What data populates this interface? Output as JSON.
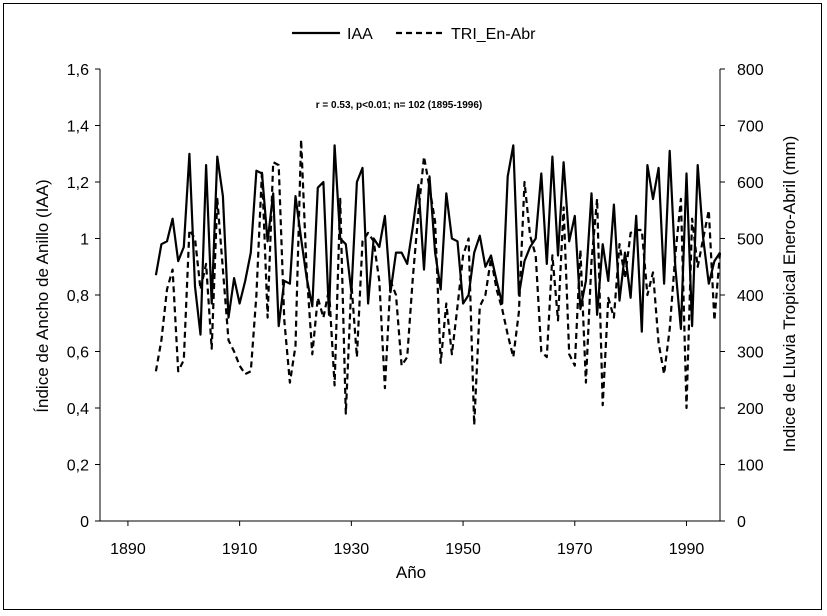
{
  "chart_data": {
    "type": "line",
    "annotation": "r = 0.53, p<0.01; n= 102 (1895-1996)",
    "xlabel": "Año",
    "ylabel_left": "Índice de Ancho de Anillo (IAA)",
    "ylabel_right": "Indice de Lluvia Tropical Enero-Abril (mm)",
    "xlim": [
      1885,
      1996
    ],
    "ylim_left": [
      0,
      1.6
    ],
    "ylim_right": [
      0,
      800
    ],
    "x_ticks": [
      "1890",
      "1910",
      "1930",
      "1950",
      "1970",
      "1990"
    ],
    "y_left_ticks": [
      "0",
      "0,2",
      "0,4",
      "0,6",
      "0,8",
      "1",
      "1,2",
      "1,4",
      "1,6"
    ],
    "y_right_ticks": [
      "0",
      "100",
      "200",
      "300",
      "400",
      "500",
      "600",
      "700",
      "800"
    ],
    "legend_position": "top",
    "grid": false,
    "x": [
      1895,
      1896,
      1897,
      1898,
      1899,
      1900,
      1901,
      1902,
      1903,
      1904,
      1905,
      1906,
      1907,
      1908,
      1909,
      1910,
      1911,
      1912,
      1913,
      1914,
      1915,
      1916,
      1917,
      1918,
      1919,
      1920,
      1921,
      1922,
      1923,
      1924,
      1925,
      1926,
      1927,
      1928,
      1929,
      1930,
      1931,
      1932,
      1933,
      1934,
      1935,
      1936,
      1937,
      1938,
      1939,
      1940,
      1941,
      1942,
      1943,
      1944,
      1945,
      1946,
      1947,
      1948,
      1949,
      1950,
      1951,
      1952,
      1953,
      1954,
      1955,
      1956,
      1957,
      1958,
      1959,
      1960,
      1961,
      1962,
      1963,
      1964,
      1965,
      1966,
      1967,
      1968,
      1969,
      1970,
      1971,
      1972,
      1973,
      1974,
      1975,
      1976,
      1977,
      1978,
      1979,
      1980,
      1981,
      1982,
      1983,
      1984,
      1985,
      1986,
      1987,
      1988,
      1989,
      1990,
      1991,
      1992,
      1993,
      1994,
      1995,
      1996
    ],
    "series": [
      {
        "name": "IAA",
        "axis": "left",
        "style": "solid",
        "color": "#000000",
        "values": [
          0.87,
          0.98,
          0.99,
          1.07,
          0.92,
          0.97,
          1.3,
          0.83,
          0.66,
          1.26,
          0.77,
          1.29,
          1.15,
          0.72,
          0.86,
          0.77,
          0.85,
          0.95,
          1.24,
          1.23,
          0.99,
          1.16,
          0.69,
          0.85,
          0.84,
          1.15,
          1.0,
          0.86,
          0.76,
          1.18,
          1.2,
          0.73,
          1.33,
          1.0,
          0.98,
          0.81,
          1.2,
          1.25,
          0.77,
          1.0,
          0.97,
          1.08,
          0.81,
          0.95,
          0.95,
          0.91,
          1.04,
          1.19,
          0.89,
          1.22,
          0.95,
          0.82,
          1.16,
          1.0,
          0.99,
          0.77,
          0.8,
          0.95,
          1.01,
          0.9,
          0.94,
          0.85,
          0.77,
          1.22,
          1.33,
          0.8,
          0.92,
          0.97,
          1.0,
          1.23,
          0.91,
          1.29,
          0.94,
          1.27,
          0.99,
          1.08,
          0.75,
          0.85,
          1.16,
          0.73,
          0.98,
          0.85,
          1.12,
          0.78,
          0.95,
          0.79,
          1.08,
          0.67,
          1.26,
          1.14,
          1.25,
          0.84,
          1.31,
          0.9,
          0.68,
          1.23,
          0.69,
          1.26,
          1.0,
          0.84,
          0.92,
          0.95
        ]
      },
      {
        "name": "TRI_En-Abr",
        "axis": "right",
        "style": "dashed",
        "color": "#000000",
        "values": [
          265,
          320,
          410,
          445,
          265,
          285,
          515,
          500,
          410,
          455,
          305,
          570,
          445,
          320,
          300,
          275,
          260,
          265,
          400,
          620,
          360,
          635,
          630,
          355,
          245,
          310,
          675,
          440,
          295,
          395,
          360,
          410,
          240,
          570,
          190,
          420,
          290,
          495,
          510,
          495,
          425,
          235,
          425,
          400,
          275,
          290,
          430,
          545,
          645,
          590,
          530,
          280,
          385,
          295,
          380,
          470,
          500,
          170,
          380,
          400,
          465,
          410,
          375,
          330,
          290,
          370,
          600,
          505,
          470,
          300,
          290,
          470,
          355,
          555,
          295,
          275,
          480,
          245,
          460,
          570,
          205,
          395,
          360,
          490,
          430,
          510,
          515,
          515,
          400,
          440,
          315,
          260,
          340,
          470,
          570,
          200,
          535,
          450,
          500,
          550,
          355,
          475
        ]
      }
    ]
  }
}
